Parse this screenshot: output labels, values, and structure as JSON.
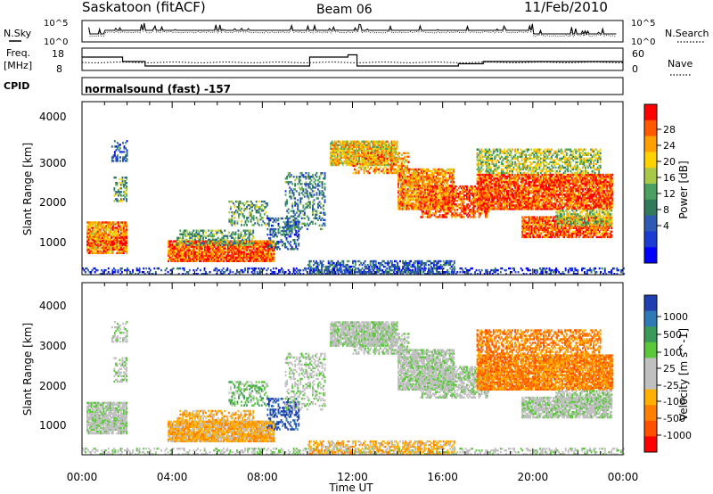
{
  "header": {
    "title": "Saskatoon (fitACF)",
    "beam": "Beam 06",
    "date": "11/Feb/2010"
  },
  "noise_panel": {
    "left_label": "N.Sky",
    "right_label": "N.Search",
    "ticks": [
      "10^5",
      "10^0"
    ]
  },
  "freq_panel": {
    "left_label_1": "Freq.",
    "left_label_2": "[MHz]",
    "left_ticks": [
      "18",
      "8"
    ],
    "right_label": "Nave",
    "right_ticks": [
      "60",
      "0"
    ]
  },
  "cpid": {
    "label": "CPID",
    "value": "normalsound (fast) -157"
  },
  "power_panel": {
    "ylabel": "Slant Range [km]",
    "yticks": [
      "4000",
      "3000",
      "2000",
      "1000"
    ],
    "colorbar_title": "Power [dB]",
    "colorbar_labels": [
      "28",
      "24",
      "20",
      "16",
      "12",
      "8",
      "4"
    ],
    "colorbar_colors": [
      "#ff0000",
      "#ff5a00",
      "#ffa000",
      "#ffd200",
      "#a8c84a",
      "#4aa060",
      "#2f7a5a",
      "#2f5ab4",
      "#1a3cd2",
      "#0000ff"
    ]
  },
  "velocity_panel": {
    "ylabel": "Slant Range [km]",
    "yticks": [
      "4000",
      "3000",
      "2000",
      "1000"
    ],
    "colorbar_title": "Velocity [m s^-1]",
    "colorbar_labels": [
      "1000",
      "500",
      "100",
      "25",
      "-25",
      "-100",
      "-500",
      "-1000"
    ],
    "colorbar_colors": [
      "#1f3fb0",
      "#2f7ab4",
      "#3a9a5a",
      "#5ac83a",
      "#c0c0c0",
      "#c0c0c0",
      "#ffb000",
      "#ff8000",
      "#ff5000",
      "#ff0000"
    ]
  },
  "xaxis": {
    "label": "Time UT",
    "ticks": [
      "00:00",
      "04:00",
      "08:00",
      "12:00",
      "16:00",
      "20:00",
      "00:00"
    ]
  },
  "chart_data": [
    {
      "type": "line",
      "title": "Saskatoon (fitACF)",
      "xlabel": "",
      "ylabel": "",
      "series": [
        {
          "name": "N.Sky"
        },
        {
          "name": "N.Search"
        }
      ],
      "ylim_labels": [
        "10^0",
        "10^5"
      ],
      "log_scale": true
    },
    {
      "type": "line",
      "series": [
        {
          "name": "Freq.",
          "x": [
            0,
            1.8,
            2.8,
            10.1,
            11.8,
            12.2,
            16.7,
            17.8,
            24
          ],
          "values": [
            14,
            12,
            10,
            14,
            15,
            10,
            11,
            12,
            12
          ]
        },
        {
          "name": "Nave"
        }
      ],
      "ylim": [
        8,
        18
      ],
      "xlim": [
        0,
        24
      ]
    },
    {
      "type": "heatmap",
      "title": "Power [dB]",
      "xlabel": "Time UT",
      "ylabel": "Slant Range [km]",
      "xlim": [
        0,
        24
      ],
      "ylim": [
        180,
        4500
      ],
      "x_ticks": [
        "00:00",
        "04:00",
        "08:00",
        "12:00",
        "16:00",
        "20:00",
        "00:00"
      ],
      "y_ticks": [
        1000,
        2000,
        3000,
        4000
      ],
      "colorbar": [
        4,
        8,
        12,
        16,
        20,
        24,
        28
      ]
    },
    {
      "type": "heatmap",
      "title": "Velocity [m s^-1]",
      "xlabel": "Time UT",
      "ylabel": "Slant Range [km]",
      "xlim": [
        0,
        24
      ],
      "ylim": [
        180,
        4500
      ],
      "x_ticks": [
        "00:00",
        "04:00",
        "08:00",
        "12:00",
        "16:00",
        "20:00",
        "00:00"
      ],
      "y_ticks": [
        1000,
        2000,
        3000,
        4000
      ],
      "colorbar": [
        -1000,
        -500,
        -100,
        -25,
        25,
        100,
        500,
        1000
      ]
    }
  ]
}
